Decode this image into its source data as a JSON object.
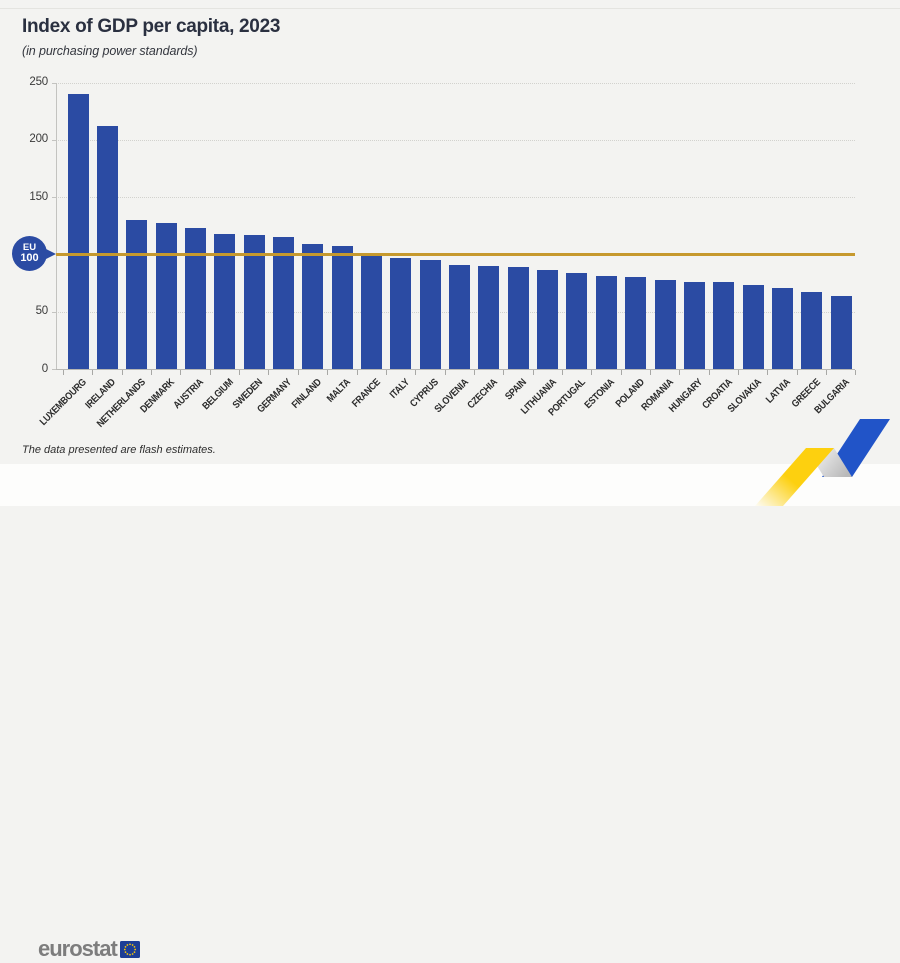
{
  "page": {
    "title": "Index of GDP per capita, 2023",
    "subtitle": "(in purchasing power standards)",
    "note": "The data presented are flash estimates.",
    "background_color": "#f3f3f1"
  },
  "chart_data": {
    "type": "bar",
    "title": "Index of GDP per capita, 2023",
    "subtitle": "(in purchasing power standards)",
    "categories": [
      "LUXEMBOURG",
      "IRELAND",
      "NETHERLANDS",
      "DENMARK",
      "AUSTRIA",
      "BELGIUM",
      "SWEDEN",
      "GERMANY",
      "FINLAND",
      "MALTA",
      "FRANCE",
      "ITALY",
      "CYPRUS",
      "SLOVENIA",
      "CZECHIA",
      "SPAIN",
      "LITHUANIA",
      "PORTUGAL",
      "ESTONIA",
      "POLAND",
      "ROMANIA",
      "HUNGARY",
      "CROATIA",
      "SLOVAKIA",
      "LATVIA",
      "GREECE",
      "BULGARIA"
    ],
    "values": [
      240,
      212,
      130,
      127,
      123,
      118,
      117,
      115,
      109,
      107,
      100,
      97,
      95,
      91,
      90,
      89,
      86,
      84,
      81,
      80,
      78,
      76,
      76,
      73,
      71,
      67,
      64
    ],
    "ylim": [
      0,
      250
    ],
    "yticks": [
      0,
      50,
      100,
      150,
      200,
      250
    ],
    "ytick_labels_shown": [
      "0",
      "50",
      "150",
      "200",
      "250"
    ],
    "grid": "horizontal-dotted",
    "legend": "none",
    "bar_color": "#2b4ba3",
    "reference_line": {
      "value": 100,
      "color": "#c6992e",
      "badge_line1": "EU",
      "badge_line2": "100"
    }
  },
  "footer": {
    "note": "The data presented are flash estimates.",
    "logo_text": "eurostat"
  },
  "colors": {
    "bar": "#2b4ba3",
    "reference_gold": "#c6992e",
    "background": "#f3f3f1",
    "ribbon_yellow": "#fdd00f",
    "ribbon_blue": "#2154c8",
    "logo_gray": "#7d7d7d",
    "flag_blue": "#1d3e96",
    "flag_stars": "#ffcc00"
  }
}
